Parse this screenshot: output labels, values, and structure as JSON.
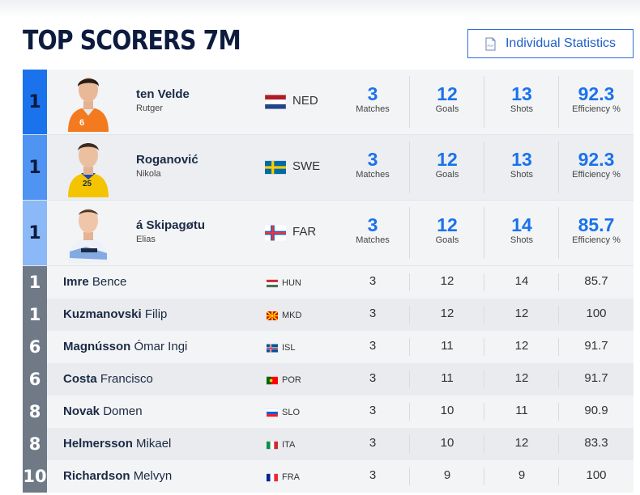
{
  "page": {
    "title": "TOP SCORERS 7M",
    "button_label": "Individual Statistics",
    "pdf_icon_text": "PDF"
  },
  "top3": [
    {
      "rank": "1",
      "last": "ten Velde",
      "first": "Rutger",
      "nation": "NED",
      "matches": "3",
      "goals": "12",
      "shots": "13",
      "eff": "92.3",
      "jersey": "6"
    },
    {
      "rank": "1",
      "last": "Roganović",
      "first": "Nikola",
      "nation": "SWE",
      "matches": "3",
      "goals": "12",
      "shots": "13",
      "eff": "92.3",
      "jersey": "25"
    },
    {
      "rank": "1",
      "last": "á Skipagøtu",
      "first": "Elias",
      "nation": "FAR",
      "matches": "3",
      "goals": "12",
      "shots": "14",
      "eff": "85.7",
      "jersey": ""
    }
  ],
  "labels": {
    "matches": "Matches",
    "goals": "Goals",
    "shots": "Shots",
    "eff": "Efficiency %"
  },
  "rows": [
    {
      "rank": "1",
      "last": "Imre",
      "first": "Bence",
      "nation": "HUN",
      "matches": "3",
      "goals": "12",
      "shots": "14",
      "eff": "85.7"
    },
    {
      "rank": "1",
      "last": "Kuzmanovski",
      "first": "Filip",
      "nation": "MKD",
      "matches": "3",
      "goals": "12",
      "shots": "12",
      "eff": "100"
    },
    {
      "rank": "6",
      "last": "Magnússon",
      "first": "Ómar Ingi",
      "nation": "ISL",
      "matches": "3",
      "goals": "11",
      "shots": "12",
      "eff": "91.7"
    },
    {
      "rank": "6",
      "last": "Costa",
      "first": "Francisco",
      "nation": "POR",
      "matches": "3",
      "goals": "11",
      "shots": "12",
      "eff": "91.7"
    },
    {
      "rank": "8",
      "last": "Novak",
      "first": "Domen",
      "nation": "SLO",
      "matches": "3",
      "goals": "10",
      "shots": "11",
      "eff": "90.9"
    },
    {
      "rank": "8",
      "last": "Helmersson",
      "first": "Mikael",
      "nation": "ITA",
      "matches": "3",
      "goals": "10",
      "shots": "12",
      "eff": "83.3"
    },
    {
      "rank": "10",
      "last": "Richardson",
      "first": "Melvyn",
      "nation": "FRA",
      "matches": "3",
      "goals": "9",
      "shots": "9",
      "eff": "100"
    }
  ],
  "colors": {
    "accent": "#1a72ec",
    "title": "#0d1b3e",
    "rank_grey": "#707986"
  }
}
